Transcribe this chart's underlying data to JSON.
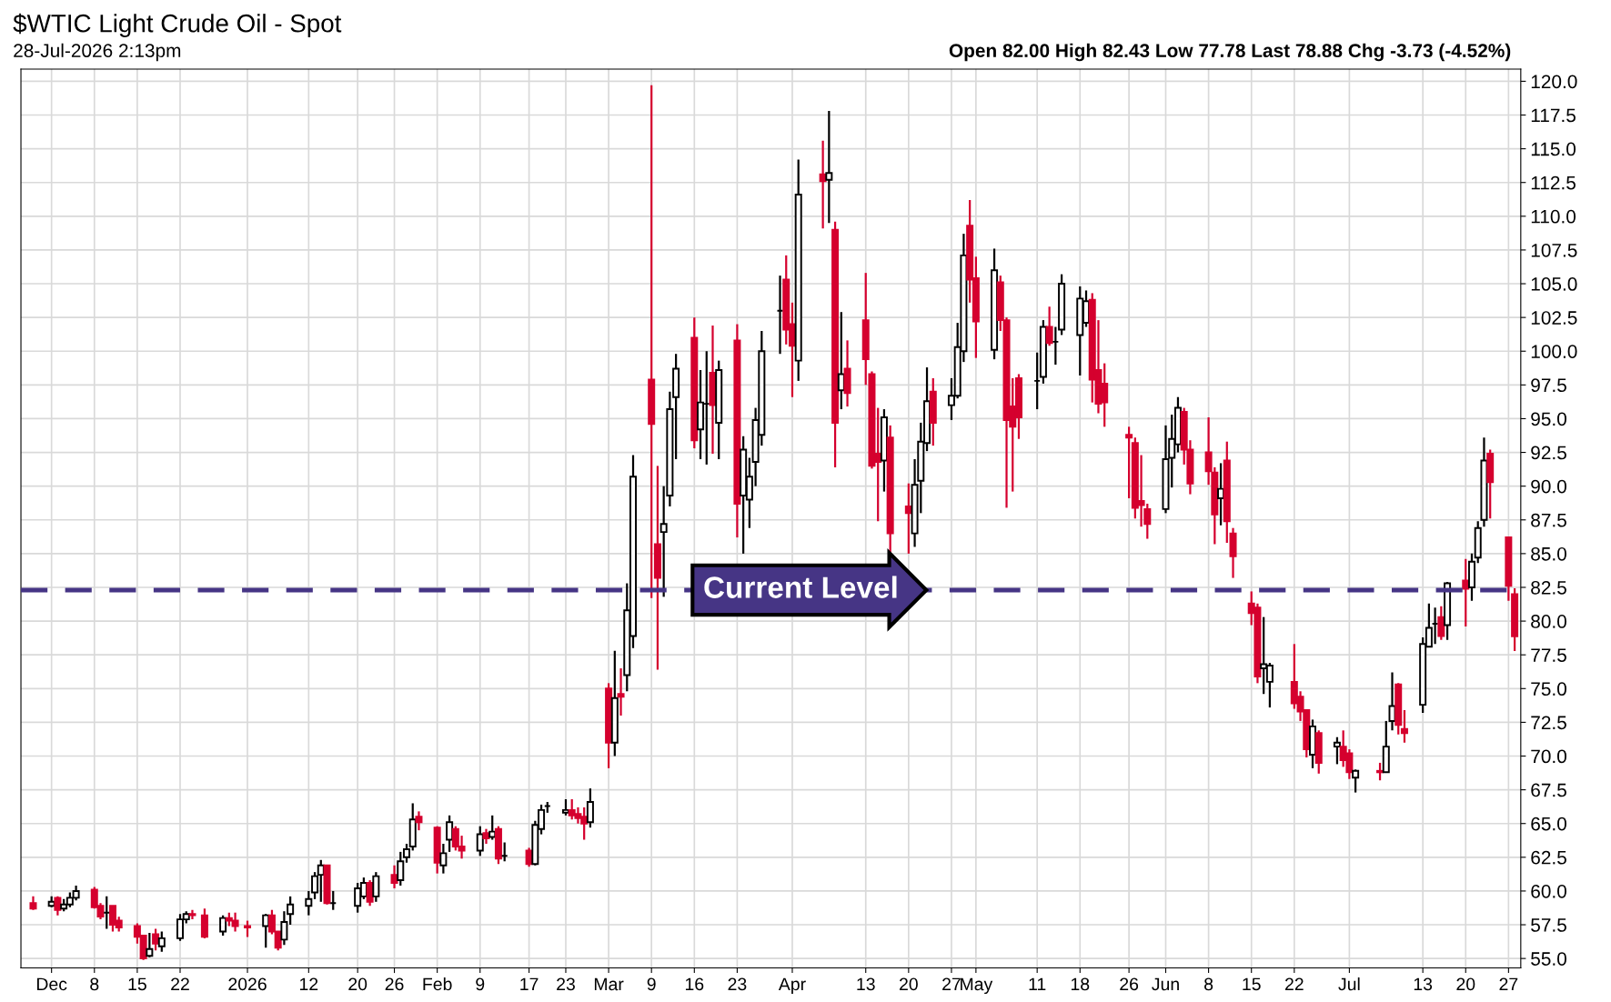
{
  "chart_data": {
    "type": "candlestick",
    "title": "$WTIC Light Crude Oil - Spot",
    "subtitle": "28-Jul-2026 2:13pm",
    "annotations": [
      "Open 82.00 High 82.43 Low 77.78 Last 78.88 Chg -3.73 (-4.52%)"
    ],
    "x": [
      "2025-11-28",
      "2025-12-01",
      "2025-12-02",
      "2025-12-03",
      "2025-12-04",
      "2025-12-05",
      "2025-12-08",
      "2025-12-09",
      "2025-12-10",
      "2025-12-11",
      "2025-12-12",
      "2025-12-15",
      "2025-12-16",
      "2025-12-17",
      "2025-12-18",
      "2025-12-19",
      "2025-12-22",
      "2025-12-23",
      "2025-12-24",
      "2025-12-26",
      "2025-12-29",
      "2025-12-30",
      "2025-12-31",
      "2026-01-02",
      "2026-01-05",
      "2026-01-06",
      "2026-01-07",
      "2026-01-08",
      "2026-01-09",
      "2026-01-12",
      "2026-01-13",
      "2026-01-14",
      "2026-01-15",
      "2026-01-16",
      "2026-01-20",
      "2026-01-21",
      "2026-01-22",
      "2026-01-23",
      "2026-01-26",
      "2026-01-27",
      "2026-01-28",
      "2026-01-29",
      "2026-01-30",
      "2026-02-02",
      "2026-02-03",
      "2026-02-04",
      "2026-02-05",
      "2026-02-06",
      "2026-02-09",
      "2026-02-10",
      "2026-02-11",
      "2026-02-12",
      "2026-02-13",
      "2026-02-17",
      "2026-02-18",
      "2026-02-19",
      "2026-02-20",
      "2026-02-23",
      "2026-02-24",
      "2026-02-25",
      "2026-02-26",
      "2026-02-27",
      "2026-03-02",
      "2026-03-03",
      "2026-03-04",
      "2026-03-05",
      "2026-03-06",
      "2026-03-09",
      "2026-03-10",
      "2026-03-11",
      "2026-03-12",
      "2026-03-13",
      "2026-03-16",
      "2026-03-17",
      "2026-03-18",
      "2026-03-19",
      "2026-03-20",
      "2026-03-23",
      "2026-03-24",
      "2026-03-25",
      "2026-03-26",
      "2026-03-27",
      "2026-03-30",
      "2026-03-31",
      "2026-04-01",
      "2026-04-02",
      "2026-04-06",
      "2026-04-07",
      "2026-04-08",
      "2026-04-09",
      "2026-04-10",
      "2026-04-13",
      "2026-04-14",
      "2026-04-15",
      "2026-04-16",
      "2026-04-17",
      "2026-04-20",
      "2026-04-21",
      "2026-04-22",
      "2026-04-23",
      "2026-04-24",
      "2026-04-27",
      "2026-04-28",
      "2026-04-29",
      "2026-04-30",
      "2026-05-01",
      "2026-05-04",
      "2026-05-05",
      "2026-05-06",
      "2026-05-07",
      "2026-05-08",
      "2026-05-11",
      "2026-05-12",
      "2026-05-13",
      "2026-05-14",
      "2026-05-15",
      "2026-05-18",
      "2026-05-19",
      "2026-05-20",
      "2026-05-21",
      "2026-05-22",
      "2026-05-26",
      "2026-05-27",
      "2026-05-28",
      "2026-05-29",
      "2026-06-01",
      "2026-06-02",
      "2026-06-03",
      "2026-06-04",
      "2026-06-05",
      "2026-06-08",
      "2026-06-09",
      "2026-06-10",
      "2026-06-11",
      "2026-06-12",
      "2026-06-15",
      "2026-06-16",
      "2026-06-17",
      "2026-06-18",
      "2026-06-22",
      "2026-06-23",
      "2026-06-24",
      "2026-06-25",
      "2026-06-26",
      "2026-06-29",
      "2026-06-30",
      "2026-07-01",
      "2026-07-02",
      "2026-07-06",
      "2026-07-07",
      "2026-07-08",
      "2026-07-09",
      "2026-07-10",
      "2026-07-13",
      "2026-07-14",
      "2026-07-15",
      "2026-07-16",
      "2026-07-17",
      "2026-07-20",
      "2026-07-21",
      "2026-07-22",
      "2026-07-23",
      "2026-07-24",
      "2026-07-27",
      "2026-07-28"
    ],
    "ohlc": [
      [
        59.1,
        59.6,
        58.6,
        58.7
      ],
      [
        58.9,
        59.6,
        58.8,
        59.2
      ],
      [
        59.5,
        59.6,
        58.2,
        58.6
      ],
      [
        58.7,
        59.4,
        58.5,
        59.0
      ],
      [
        59.0,
        59.9,
        58.8,
        59.5
      ],
      [
        59.5,
        60.4,
        59.3,
        60.0
      ],
      [
        60.1,
        60.3,
        58.7,
        58.8
      ],
      [
        58.9,
        59.1,
        57.9,
        58.1
      ],
      [
        58.4,
        59.6,
        57.2,
        58.4
      ],
      [
        58.9,
        58.9,
        57.0,
        57.5
      ],
      [
        57.8,
        58.1,
        57.0,
        57.3
      ],
      [
        57.4,
        57.6,
        56.1,
        56.6
      ],
      [
        56.7,
        56.7,
        54.9,
        55.0
      ],
      [
        55.2,
        56.9,
        55.1,
        55.7
      ],
      [
        56.8,
        57.2,
        55.6,
        56.1
      ],
      [
        55.9,
        57.0,
        55.5,
        56.5
      ],
      [
        56.5,
        58.3,
        56.3,
        57.9
      ],
      [
        57.9,
        58.5,
        57.6,
        58.3
      ],
      [
        58.3,
        58.6,
        57.9,
        58.2
      ],
      [
        58.2,
        58.7,
        56.5,
        56.6
      ],
      [
        57.0,
        58.2,
        56.7,
        58.0
      ],
      [
        58.0,
        58.4,
        57.4,
        57.8
      ],
      [
        57.8,
        58.4,
        57.0,
        57.4
      ],
      [
        57.4,
        57.8,
        56.6,
        57.3
      ],
      [
        57.4,
        58.3,
        55.8,
        58.2
      ],
      [
        58.2,
        58.6,
        56.8,
        57.0
      ],
      [
        57.0,
        57.0,
        55.6,
        55.8
      ],
      [
        56.4,
        58.5,
        56.0,
        57.7
      ],
      [
        58.3,
        59.6,
        57.5,
        59.0
      ],
      [
        58.9,
        60.0,
        58.2,
        59.4
      ],
      [
        59.9,
        61.4,
        59.4,
        61.1
      ],
      [
        61.2,
        62.3,
        59.2,
        61.9
      ],
      [
        61.9,
        61.9,
        59.0,
        59.1
      ],
      [
        59.1,
        60.0,
        58.6,
        59.1
      ],
      [
        58.9,
        60.6,
        58.4,
        60.2
      ],
      [
        59.6,
        61.0,
        59.4,
        60.6
      ],
      [
        60.6,
        60.8,
        58.9,
        59.2
      ],
      [
        59.6,
        61.4,
        59.2,
        61.1
      ],
      [
        61.2,
        61.9,
        60.2,
        60.6
      ],
      [
        60.8,
        62.9,
        60.4,
        62.2
      ],
      [
        62.5,
        63.5,
        62.1,
        63.1
      ],
      [
        63.3,
        66.5,
        63.0,
        65.3
      ],
      [
        65.5,
        65.9,
        64.5,
        65.1
      ],
      [
        64.7,
        64.8,
        61.3,
        62.1
      ],
      [
        61.9,
        63.5,
        61.3,
        62.8
      ],
      [
        63.8,
        65.6,
        62.9,
        65.1
      ],
      [
        64.6,
        64.8,
        63.0,
        63.3
      ],
      [
        63.3,
        64.1,
        62.4,
        63.0
      ],
      [
        63.0,
        64.8,
        62.6,
        64.2
      ],
      [
        64.3,
        64.6,
        63.5,
        63.9
      ],
      [
        64.0,
        65.6,
        63.8,
        64.4
      ],
      [
        64.6,
        64.8,
        62.0,
        62.4
      ],
      [
        62.6,
        63.6,
        62.2,
        62.6
      ],
      [
        63.0,
        63.2,
        61.8,
        62.0
      ],
      [
        62.0,
        65.2,
        61.9,
        64.9
      ],
      [
        64.6,
        66.4,
        64.2,
        66.0
      ],
      [
        66.3,
        66.6,
        65.8,
        66.3
      ],
      [
        65.8,
        66.8,
        65.6,
        66.0
      ],
      [
        66.0,
        66.8,
        65.3,
        65.6
      ],
      [
        65.7,
        66.2,
        65.0,
        65.4
      ],
      [
        65.5,
        66.2,
        63.8,
        65.0
      ],
      [
        65.1,
        67.6,
        64.7,
        66.6
      ],
      [
        75.0,
        75.4,
        69.1,
        71.0
      ],
      [
        71.0,
        77.8,
        70.0,
        74.3
      ],
      [
        74.6,
        76.5,
        73.0,
        74.4
      ],
      [
        76.0,
        82.8,
        74.8,
        80.8
      ],
      [
        78.9,
        92.3,
        78.0,
        90.7
      ],
      [
        97.9,
        119.7,
        81.7,
        94.6
      ],
      [
        85.7,
        91.5,
        76.4,
        83.2
      ],
      [
        86.6,
        90.0,
        81.8,
        87.2
      ],
      [
        89.3,
        97.0,
        88.5,
        95.7
      ],
      [
        96.6,
        99.8,
        92.0,
        98.7
      ],
      [
        101.0,
        102.5,
        92.8,
        93.4
      ],
      [
        94.2,
        98.6,
        92.0,
        96.2
      ],
      [
        96.1,
        100.0,
        91.6,
        96.1
      ],
      [
        98.4,
        101.9,
        92.4,
        96.0
      ],
      [
        94.7,
        99.3,
        92.0,
        98.6
      ],
      [
        100.8,
        102.0,
        86.2,
        88.7
      ],
      [
        89.3,
        93.7,
        85.0,
        92.7
      ],
      [
        89.0,
        92.1,
        86.9,
        90.7
      ],
      [
        91.8,
        95.8,
        90.0,
        94.9
      ],
      [
        93.8,
        101.5,
        93.0,
        100.0
      ],
      [
        103.0,
        105.6,
        99.8,
        103.0
      ],
      [
        105.3,
        107.1,
        100.5,
        101.6
      ],
      [
        102.0,
        103.6,
        96.6,
        100.4
      ],
      [
        99.3,
        114.2,
        97.8,
        111.6
      ],
      [
        113.1,
        115.6,
        109.1,
        112.6
      ],
      [
        112.7,
        117.8,
        109.5,
        113.2
      ],
      [
        109.0,
        109.6,
        91.4,
        94.7
      ],
      [
        97.1,
        102.9,
        95.7,
        98.3
      ],
      [
        98.7,
        100.8,
        95.9,
        96.9
      ],
      [
        102.3,
        105.8,
        97.5,
        99.4
      ],
      [
        98.3,
        98.5,
        91.3,
        91.5
      ],
      [
        92.4,
        95.8,
        87.4,
        91.8
      ],
      [
        91.9,
        95.7,
        89.6,
        95.1
      ],
      [
        93.6,
        94.5,
        85.0,
        86.5
      ],
      [
        88.5,
        90.2,
        85.0,
        88.0
      ],
      [
        86.5,
        92.0,
        85.5,
        90.1
      ],
      [
        90.4,
        94.7,
        88.0,
        93.3
      ],
      [
        93.2,
        98.8,
        92.6,
        96.3
      ],
      [
        97.0,
        98.0,
        93.0,
        94.7
      ],
      [
        96.0,
        98.0,
        94.9,
        96.7
      ],
      [
        96.7,
        102.1,
        96.5,
        100.3
      ],
      [
        100.0,
        108.7,
        99.2,
        107.1
      ],
      [
        109.3,
        111.2,
        103.6,
        105.3
      ],
      [
        105.4,
        107.0,
        99.5,
        102.2
      ],
      [
        100.1,
        107.6,
        99.4,
        106.0
      ],
      [
        105.1,
        105.6,
        101.5,
        102.3
      ],
      [
        102.3,
        102.5,
        88.4,
        94.9
      ],
      [
        95.9,
        98.0,
        89.6,
        94.4
      ],
      [
        98.0,
        98.3,
        93.5,
        95.1
      ],
      [
        97.8,
        99.9,
        95.7,
        97.8
      ],
      [
        98.1,
        102.3,
        97.6,
        101.8
      ],
      [
        101.8,
        103.3,
        100.4,
        100.6
      ],
      [
        100.7,
        101.8,
        99.0,
        100.7
      ],
      [
        101.6,
        105.7,
        101.2,
        105.0
      ],
      [
        101.2,
        104.8,
        98.2,
        103.9
      ],
      [
        102.1,
        104.5,
        101.8,
        103.7
      ],
      [
        103.8,
        104.3,
        96.2,
        97.9
      ],
      [
        98.6,
        102.3,
        95.4,
        96.1
      ],
      [
        97.6,
        99.1,
        94.4,
        96.2
      ],
      [
        93.8,
        94.4,
        89.1,
        93.6
      ],
      [
        93.2,
        93.6,
        87.6,
        88.4
      ],
      [
        88.9,
        92.3,
        87.0,
        88.6
      ],
      [
        88.3,
        88.7,
        86.1,
        87.2
      ],
      [
        88.3,
        94.5,
        88.0,
        92.0
      ],
      [
        92.1,
        95.3,
        89.9,
        93.5
      ],
      [
        93.1,
        96.6,
        92.5,
        95.8
      ],
      [
        95.5,
        95.8,
        91.6,
        92.7
      ],
      [
        92.7,
        93.4,
        89.4,
        90.2
      ],
      [
        92.5,
        95.1,
        90.1,
        91.1
      ],
      [
        91.0,
        91.4,
        85.7,
        87.9
      ],
      [
        89.1,
        91.7,
        87.1,
        89.8
      ],
      [
        91.9,
        93.3,
        85.8,
        87.4
      ],
      [
        86.5,
        86.9,
        83.2,
        84.8
      ],
      [
        81.3,
        82.2,
        79.7,
        80.6
      ],
      [
        81.0,
        81.3,
        75.4,
        75.9
      ],
      [
        76.5,
        80.3,
        74.6,
        76.8
      ],
      [
        75.5,
        76.9,
        73.6,
        76.7
      ],
      [
        75.5,
        78.3,
        73.5,
        73.9
      ],
      [
        74.4,
        74.8,
        72.6,
        73.3
      ],
      [
        73.4,
        73.4,
        69.9,
        70.5
      ],
      [
        70.1,
        72.7,
        69.1,
        72.2
      ],
      [
        71.7,
        71.9,
        68.7,
        69.5
      ],
      [
        70.7,
        71.4,
        69.4,
        71.0
      ],
      [
        70.7,
        71.9,
        69.2,
        69.7
      ],
      [
        70.2,
        70.5,
        68.3,
        68.8
      ],
      [
        68.4,
        69.0,
        67.3,
        68.9
      ],
      [
        68.9,
        69.5,
        68.2,
        68.8
      ],
      [
        68.8,
        72.6,
        68.8,
        70.7
      ],
      [
        72.6,
        76.2,
        71.9,
        73.7
      ],
      [
        75.3,
        75.4,
        71.6,
        72.3
      ],
      [
        72.0,
        73.4,
        71.0,
        71.7
      ],
      [
        73.8,
        78.8,
        73.2,
        78.3
      ],
      [
        78.1,
        81.3,
        78.1,
        79.5
      ],
      [
        79.8,
        81.0,
        78.3,
        79.8
      ],
      [
        80.3,
        81.1,
        78.6,
        78.9
      ],
      [
        79.7,
        82.9,
        78.6,
        82.8
      ],
      [
        83.0,
        84.6,
        79.6,
        82.4
      ],
      [
        82.5,
        85.0,
        81.5,
        84.4
      ],
      [
        84.7,
        87.4,
        84.3,
        86.9
      ],
      [
        87.5,
        93.6,
        87.0,
        91.9
      ],
      [
        92.4,
        92.7,
        87.6,
        90.3
      ],
      [
        86.2,
        86.2,
        81.5,
        82.61
      ],
      [
        82.0,
        82.43,
        77.78,
        78.88
      ]
    ],
    "xlim": [
      "2025-11-26",
      "2026-07-29"
    ],
    "xticks": [
      {
        "value": "2025-12-01",
        "label": "Dec"
      },
      {
        "value": "2025-12-08",
        "label": "8"
      },
      {
        "value": "2025-12-15",
        "label": "15"
      },
      {
        "value": "2025-12-22",
        "label": "22"
      },
      {
        "value": "2026-01-02",
        "label": "2026"
      },
      {
        "value": "2026-01-12",
        "label": "12"
      },
      {
        "value": "2026-01-20",
        "label": "20"
      },
      {
        "value": "2026-01-26",
        "label": "26"
      },
      {
        "value": "2026-02-02",
        "label": "Feb"
      },
      {
        "value": "2026-02-09",
        "label": "9"
      },
      {
        "value": "2026-02-17",
        "label": "17"
      },
      {
        "value": "2026-02-23",
        "label": "23"
      },
      {
        "value": "2026-03-02",
        "label": "Mar"
      },
      {
        "value": "2026-03-09",
        "label": "9"
      },
      {
        "value": "2026-03-16",
        "label": "16"
      },
      {
        "value": "2026-03-23",
        "label": "23"
      },
      {
        "value": "2026-04-01",
        "label": "Apr"
      },
      {
        "value": "2026-04-13",
        "label": "13"
      },
      {
        "value": "2026-04-20",
        "label": "20"
      },
      {
        "value": "2026-04-27",
        "label": "27"
      },
      {
        "value": "2026-05-01",
        "label": "May"
      },
      {
        "value": "2026-05-11",
        "label": "11"
      },
      {
        "value": "2026-05-18",
        "label": "18"
      },
      {
        "value": "2026-05-26",
        "label": "26"
      },
      {
        "value": "2026-06-01",
        "label": "Jun"
      },
      {
        "value": "2026-06-08",
        "label": "8"
      },
      {
        "value": "2026-06-15",
        "label": "15"
      },
      {
        "value": "2026-06-22",
        "label": "22"
      },
      {
        "value": "2026-07-01",
        "label": "Jul"
      },
      {
        "value": "2026-07-13",
        "label": "13"
      },
      {
        "value": "2026-07-20",
        "label": "20"
      },
      {
        "value": "2026-07-27",
        "label": "27"
      }
    ],
    "ylim": [
      54.3,
      120.9
    ],
    "yticks": [
      {
        "value": 55,
        "label": "55.0"
      },
      {
        "value": 57.5,
        "label": "57.5"
      },
      {
        "value": 60,
        "label": "60.0"
      },
      {
        "value": 62.5,
        "label": "62.5"
      },
      {
        "value": 65,
        "label": "65.0"
      },
      {
        "value": 67.5,
        "label": "67.5"
      },
      {
        "value": 70,
        "label": "70.0"
      },
      {
        "value": 72.5,
        "label": "72.5"
      },
      {
        "value": 75,
        "label": "75.0"
      },
      {
        "value": 77.5,
        "label": "77.5"
      },
      {
        "value": 80,
        "label": "80.0"
      },
      {
        "value": 82.5,
        "label": "82.5"
      },
      {
        "value": 85,
        "label": "85.0"
      },
      {
        "value": 87.5,
        "label": "87.5"
      },
      {
        "value": 90,
        "label": "90.0"
      },
      {
        "value": 92.5,
        "label": "92.5"
      },
      {
        "value": 95,
        "label": "95.0"
      },
      {
        "value": 97.5,
        "label": "97.5"
      },
      {
        "value": 100,
        "label": "100.0"
      },
      {
        "value": 102.5,
        "label": "102.5"
      },
      {
        "value": 105,
        "label": "105.0"
      },
      {
        "value": 107.5,
        "label": "107.5"
      },
      {
        "value": 110,
        "label": "110.0"
      },
      {
        "value": 112.5,
        "label": "112.5"
      },
      {
        "value": 115,
        "label": "115.0"
      },
      {
        "value": 117.5,
        "label": "117.5"
      },
      {
        "value": 120,
        "label": "120.0"
      }
    ],
    "ref_lines": [
      {
        "axis": "y",
        "value": 82.3,
        "label": "Current Level",
        "color": "#463585",
        "line_style": "dashed"
      }
    ],
    "grid": true,
    "legend": false
  }
}
